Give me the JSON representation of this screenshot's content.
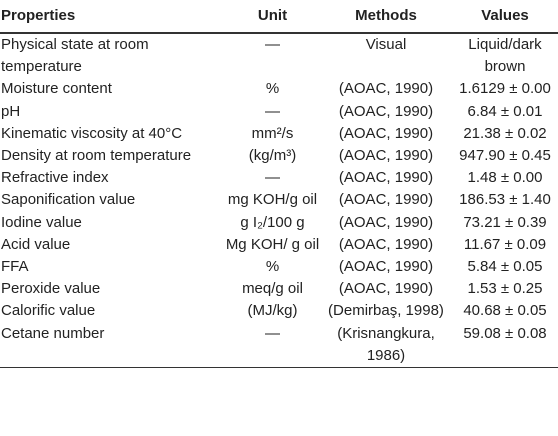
{
  "table": {
    "header": [
      "Properties",
      "Unit",
      "Methods",
      "Values"
    ],
    "rows": [
      [
        "Physical state at room temperature",
        "—",
        "Visual",
        "Liquid/dark brown"
      ],
      [
        "Moisture content",
        "%",
        "(AOAC, 1990)",
        "1.6129 ± 0.00"
      ],
      [
        "pH",
        "—",
        "(AOAC, 1990)",
        "6.84 ± 0.01"
      ],
      [
        "Kinematic viscosity at 40°C",
        "mm²/s",
        "(AOAC, 1990)",
        "21.38 ± 0.02"
      ],
      [
        "Density at room temperature",
        "(kg/m³)",
        "(AOAC, 1990)",
        "947.90 ± 0.45"
      ],
      [
        "Refractive index",
        "—",
        "(AOAC, 1990)",
        "1.48 ± 0.00"
      ],
      [
        "Saponification value",
        "mg KOH/g oil",
        "(AOAC, 1990)",
        "186.53 ± 1.40"
      ],
      [
        "Iodine value",
        "g I₂/100 g",
        "(AOAC, 1990)",
        "73.21 ± 0.39"
      ],
      [
        "Acid value",
        "Mg KOH/ g oil",
        "(AOAC, 1990)",
        "11.67 ± 0.09"
      ],
      [
        "FFA",
        "%",
        "(AOAC, 1990)",
        "5.84 ± 0.05"
      ],
      [
        "Peroxide value",
        "meq/g oil",
        "(AOAC, 1990)",
        "1.53 ± 0.25"
      ],
      [
        "Calorific value",
        "(MJ/kg)",
        "(Demirbaş, 1998)",
        "40.68 ± 0.05"
      ],
      [
        "Cetane number",
        "—",
        "(Krisnangkura, 1986)",
        "59.08 ± 0.08"
      ]
    ]
  }
}
